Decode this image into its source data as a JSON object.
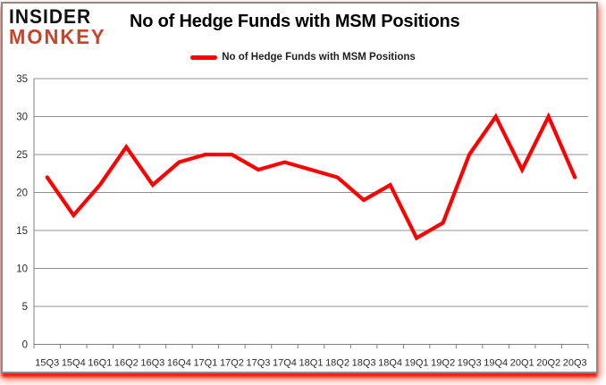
{
  "brand": {
    "line1": "INSIDER",
    "line2": "MONKEY",
    "line1_color": "#121212",
    "line2_color": "#c8432c"
  },
  "title": "No of Hedge Funds with MSM Positions",
  "legend": {
    "label": "No of Hedge Funds with MSM Positions",
    "swatch_color": "#ff0000"
  },
  "chart_data": {
    "type": "line",
    "title": "No of Hedge Funds with MSM Positions",
    "categories": [
      "15Q3",
      "15Q4",
      "16Q1",
      "16Q2",
      "16Q3",
      "16Q4",
      "17Q1",
      "17Q2",
      "17Q3",
      "17Q4",
      "18Q1",
      "18Q2",
      "18Q3",
      "18Q4",
      "19Q1",
      "19Q2",
      "19Q3",
      "19Q4",
      "20Q1",
      "20Q2",
      "20Q3"
    ],
    "series": [
      {
        "name": "No of Hedge Funds with MSM Positions",
        "color": "#ff0000",
        "values": [
          22,
          17,
          21,
          26,
          21,
          24,
          25,
          25,
          23,
          24,
          23,
          22,
          19,
          21,
          14,
          16,
          25,
          30,
          23,
          30,
          22
        ]
      }
    ],
    "xlabel": "",
    "ylabel": "",
    "ylim": [
      0,
      35
    ],
    "yticks": [
      0,
      5,
      10,
      15,
      20,
      25,
      30,
      35
    ],
    "grid": true,
    "legend_position": "top-center",
    "gridline_color": "#909090",
    "axis_color": "#7f7f7f",
    "tick_label_color": "#2b2b2b"
  }
}
